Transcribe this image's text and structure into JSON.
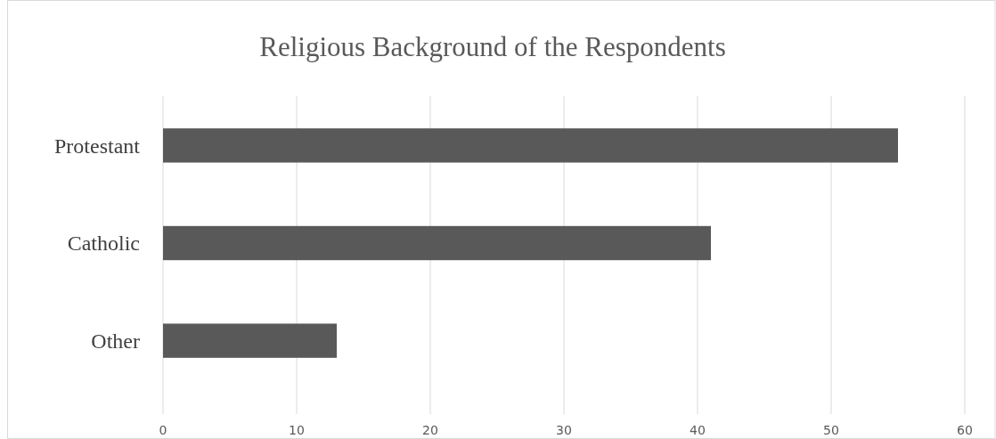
{
  "chart_data": {
    "type": "bar",
    "orientation": "horizontal",
    "title": "Religious Background of the Respondents",
    "categories": [
      "Protestant",
      "Catholic",
      "Other"
    ],
    "values": [
      55,
      41,
      13
    ],
    "color": "#595959",
    "xlim": [
      0,
      60
    ],
    "xticks": [
      0,
      10,
      20,
      30,
      40,
      50,
      60
    ],
    "grid": "x"
  }
}
